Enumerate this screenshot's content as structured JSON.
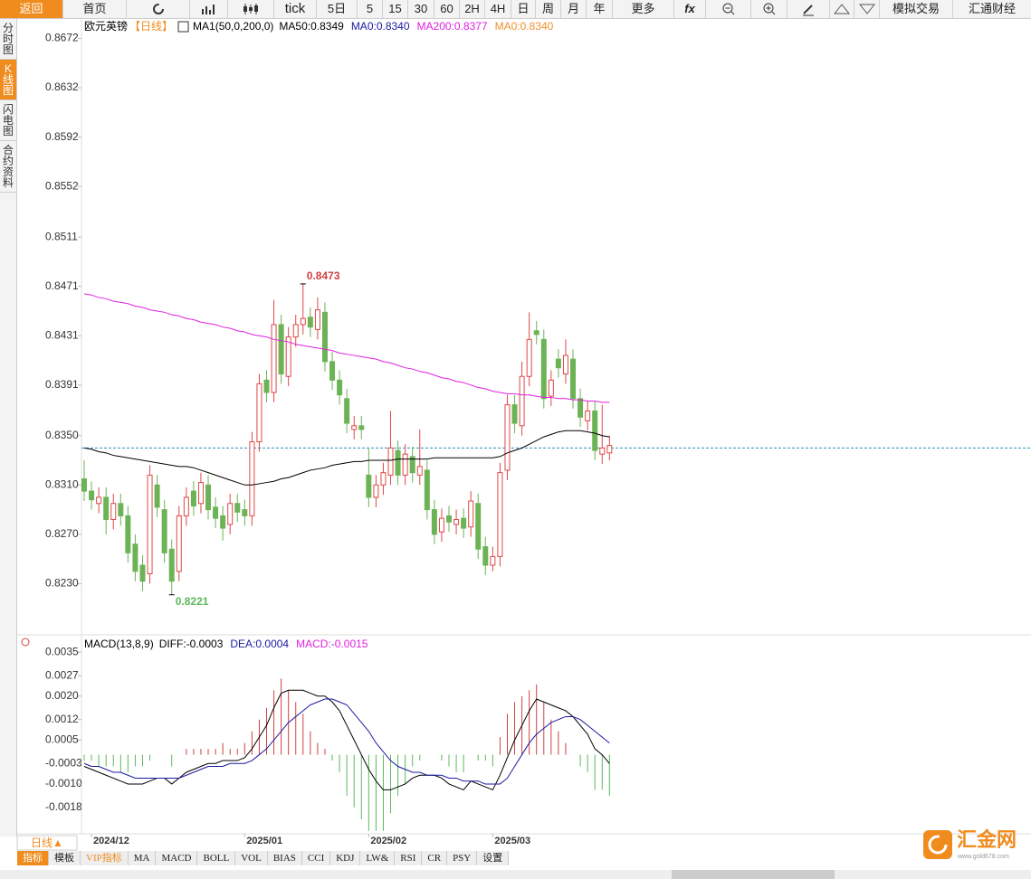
{
  "toolbar": [
    "返回",
    "首页",
    "tick",
    "5日",
    "5",
    "15",
    "30",
    "60",
    "2H",
    "4H",
    "日",
    "周",
    "月",
    "年",
    "更多",
    "fx",
    "模拟交易",
    "汇通财经"
  ],
  "sidebar": [
    "分时图",
    "K线图",
    "闪电图",
    "合约资料"
  ],
  "period_tab": "日线▲",
  "bottom_tabs": [
    "指标",
    "模板",
    "VIP指标",
    "MA",
    "MACD",
    "BOLL",
    "VOL",
    "BIAS",
    "CCI",
    "KDJ",
    "LW&",
    "RSI",
    "CR",
    "PSY",
    "设置"
  ],
  "logo": {
    "name": "汇金网",
    "url": "www.gold678.com"
  },
  "chart_data": {
    "type": "candlestick",
    "title": "欧元英镑",
    "subtitle": "【日线】",
    "indicator_label": "MA1(50,0,200,0)",
    "categories": [
      null,
      "2024/12",
      null,
      null,
      null,
      null,
      null,
      null,
      null,
      null,
      null,
      null,
      null,
      null,
      null,
      null,
      null,
      null,
      null,
      null,
      null,
      null,
      "2025/01",
      null,
      null,
      null,
      null,
      null,
      null,
      null,
      null,
      null,
      null,
      null,
      null,
      null,
      null,
      null,
      null,
      "2025/02",
      null,
      null,
      null,
      null,
      null,
      null,
      null,
      null,
      null,
      null,
      null,
      null,
      null,
      null,
      null,
      null,
      "2025/03",
      null,
      null,
      null,
      null,
      null,
      null,
      null,
      null,
      null,
      null,
      null,
      null,
      null,
      null,
      null,
      null
    ],
    "open": [
      0.8315,
      0.8305,
      0.8295,
      0.83,
      0.8282,
      0.8295,
      0.8285,
      0.8262,
      0.8245,
      0.8238,
      0.831,
      0.829,
      0.8258,
      0.824,
      0.8285,
      0.8305,
      0.8295,
      0.831,
      0.8292,
      0.8285,
      0.8278,
      0.8295,
      0.829,
      0.8285,
      0.8345,
      0.8395,
      0.8385,
      0.844,
      0.8398,
      0.843,
      0.844,
      0.8446,
      0.8436,
      0.845,
      0.841,
      0.8395,
      0.838,
      0.8355,
      0.8358,
      0.8318,
      0.83,
      0.831,
      0.8318,
      0.8338,
      0.8318,
      0.8333,
      0.8318,
      0.8322,
      0.829,
      0.8272,
      0.8285,
      0.8278,
      0.8283,
      0.8276,
      0.8295,
      0.826,
      0.8245,
      0.8252,
      0.8322,
      0.8375,
      0.8358,
      0.8398,
      0.8435,
      0.8428,
      0.8382,
      0.8412,
      0.84,
      0.8412,
      0.838,
      0.8362,
      0.837,
      0.8335,
      0.8336
    ],
    "high": [
      0.833,
      0.8313,
      0.8308,
      0.8308,
      0.8303,
      0.8303,
      0.8293,
      0.827,
      0.8253,
      0.8326,
      0.8318,
      0.8298,
      0.8266,
      0.8293,
      0.8308,
      0.8313,
      0.832,
      0.8318,
      0.83,
      0.8293,
      0.8303,
      0.8303,
      0.8298,
      0.8353,
      0.84,
      0.8403,
      0.846,
      0.8448,
      0.8438,
      0.8448,
      0.8473,
      0.8454,
      0.8462,
      0.8458,
      0.8418,
      0.8403,
      0.8388,
      0.8366,
      0.8366,
      0.834,
      0.8318,
      0.8328,
      0.837,
      0.8346,
      0.8343,
      0.8341,
      0.8355,
      0.833,
      0.8298,
      0.8291,
      0.8293,
      0.829,
      0.8291,
      0.8305,
      0.8303,
      0.8268,
      0.826,
      0.8328,
      0.8383,
      0.8383,
      0.841,
      0.845,
      0.8443,
      0.8436,
      0.8403,
      0.842,
      0.8428,
      0.842,
      0.8388,
      0.8378,
      0.8378,
      0.8375,
      0.835
    ],
    "low": [
      0.8297,
      0.829,
      0.8287,
      0.827,
      0.8274,
      0.8277,
      0.8247,
      0.8232,
      0.8224,
      0.823,
      0.8284,
      0.8247,
      0.8221,
      0.8232,
      0.8277,
      0.8285,
      0.8287,
      0.8282,
      0.8275,
      0.8265,
      0.827,
      0.828,
      0.8277,
      0.8277,
      0.8337,
      0.8377,
      0.8377,
      0.8392,
      0.839,
      0.8422,
      0.8432,
      0.843,
      0.8428,
      0.8402,
      0.8387,
      0.8375,
      0.8352,
      0.8347,
      0.8347,
      0.8292,
      0.8292,
      0.8302,
      0.831,
      0.831,
      0.831,
      0.8312,
      0.831,
      0.8282,
      0.8262,
      0.8264,
      0.8272,
      0.827,
      0.8267,
      0.8268,
      0.825,
      0.8237,
      0.824,
      0.8244,
      0.8314,
      0.8352,
      0.835,
      0.839,
      0.8424,
      0.8372,
      0.8374,
      0.8397,
      0.8392,
      0.8372,
      0.8357,
      0.8354,
      0.833,
      0.8327,
      0.833
    ],
    "close": [
      0.8305,
      0.8298,
      0.83,
      0.8282,
      0.8295,
      0.8285,
      0.8255,
      0.824,
      0.8232,
      0.8318,
      0.8292,
      0.8255,
      0.8232,
      0.8285,
      0.83,
      0.8293,
      0.8312,
      0.829,
      0.8283,
      0.8275,
      0.8295,
      0.8288,
      0.8285,
      0.8345,
      0.8392,
      0.8385,
      0.844,
      0.84,
      0.843,
      0.844,
      0.8445,
      0.8438,
      0.8452,
      0.841,
      0.8395,
      0.8383,
      0.836,
      0.8358,
      0.8355,
      0.83,
      0.831,
      0.832,
      0.834,
      0.8318,
      0.8335,
      0.832,
      0.8325,
      0.829,
      0.827,
      0.8283,
      0.828,
      0.8282,
      0.8275,
      0.8297,
      0.8258,
      0.8245,
      0.8252,
      0.832,
      0.8375,
      0.836,
      0.8398,
      0.8428,
      0.8432,
      0.838,
      0.8395,
      0.8405,
      0.8415,
      0.838,
      0.8365,
      0.837,
      0.8338,
      0.834,
      0.8342
    ],
    "up_color": "#e04848",
    "down_color": "#6cb356",
    "ylim": [
      0.819,
      0.8687
    ],
    "yticks": [
      0.8672,
      0.8632,
      0.8592,
      0.8552,
      0.8511,
      0.8471,
      0.8431,
      0.8391,
      {
        "value": 0.835,
        "label": "0.8350"
      },
      {
        "value": 0.831,
        "label": "0.8310"
      },
      {
        "value": 0.827,
        "label": "0.8270"
      },
      {
        "value": 0.823,
        "label": "0.8230"
      }
    ],
    "reference_line": 0.834,
    "reference_color": "#2a8fbd",
    "series": [
      {
        "name": "MA50:0.8349",
        "color": "#000000",
        "values": [
          0.834,
          0.8339,
          0.8337,
          0.8336,
          0.8334,
          0.8333,
          0.8332,
          0.8331,
          0.833,
          0.8329,
          0.8328,
          0.8327,
          0.8326,
          0.8325,
          0.8325,
          0.8324,
          0.8322,
          0.832,
          0.8318,
          0.8316,
          0.8314,
          0.8312,
          0.831,
          0.831,
          0.8311,
          0.8312,
          0.8313,
          0.8315,
          0.8316,
          0.8318,
          0.832,
          0.8322,
          0.8323,
          0.8324,
          0.8326,
          0.8327,
          0.8328,
          0.8329,
          0.8329,
          0.833,
          0.833,
          0.833,
          0.833,
          0.8331,
          0.8331,
          0.8331,
          0.8331,
          0.8331,
          0.8332,
          0.8332,
          0.8332,
          0.8332,
          0.8332,
          0.8332,
          0.8332,
          0.8332,
          0.8332,
          0.8333,
          0.8336,
          0.8338,
          0.834,
          0.8343,
          0.8346,
          0.8349,
          0.8351,
          0.8353,
          0.8354,
          0.8354,
          0.8354,
          0.8353,
          0.8352,
          0.835,
          0.8349
        ]
      },
      {
        "name": "MA200:0.8377",
        "color": "#e020e0",
        "values": [
          0.8465,
          0.8464,
          0.8462,
          0.8461,
          0.8459,
          0.8458,
          0.8457,
          0.8455,
          0.8454,
          0.8452,
          0.8451,
          0.845,
          0.8448,
          0.8447,
          0.8445,
          0.8444,
          0.8442,
          0.8441,
          0.844,
          0.8438,
          0.8437,
          0.8435,
          0.8434,
          0.8432,
          0.8431,
          0.843,
          0.8428,
          0.8427,
          0.8426,
          0.8424,
          0.8423,
          0.8422,
          0.8421,
          0.842,
          0.8419,
          0.8417,
          0.8416,
          0.8415,
          0.8414,
          0.8413,
          0.8412,
          0.841,
          0.8409,
          0.8407,
          0.8405,
          0.8404,
          0.8402,
          0.8401,
          0.8399,
          0.8397,
          0.8396,
          0.8394,
          0.8393,
          0.8391,
          0.8389,
          0.8388,
          0.8386,
          0.8385,
          0.8384,
          0.8384,
          0.8383,
          0.8383,
          0.8382,
          0.8381,
          0.8381,
          0.838,
          0.838,
          0.8379,
          0.8379,
          0.8378,
          0.8378,
          0.8377,
          0.8377
        ]
      }
    ],
    "legend": [
      {
        "text": "MA50:0.8349",
        "color": "#000000"
      },
      {
        "text": "MA0:0.8340",
        "color": "#1a1aa0"
      },
      {
        "text": "MA200:0.8377",
        "color": "#e020e0"
      },
      {
        "text": "MA0:0.8340",
        "color": "#f09030"
      }
    ],
    "macd": {
      "title": "MACD(13,8,9)",
      "ylim": [
        -0.0027,
        0.004
      ],
      "yticks": [
        0.0035,
        0.0027,
        {
          "value": 0.002,
          "label": "0.0020"
        },
        0.0012,
        0.0005,
        -0.0003,
        {
          "value": -0.001,
          "label": "-0.0010"
        },
        -0.0018
      ],
      "series": [
        {
          "name": "DIFF:-0.0003",
          "color": "#000000",
          "values": [
            -0.0004,
            -0.0005,
            -0.0006,
            -0.0007,
            -0.0008,
            -0.0009,
            -0.001,
            -0.001,
            -0.001,
            -0.0009,
            -0.0008,
            -0.0008,
            -0.001,
            -0.0008,
            -0.0006,
            -0.0005,
            -0.0004,
            -0.0003,
            -0.0003,
            -0.0002,
            -0.0002,
            -0.0002,
            -0.0001,
            0.0002,
            0.0006,
            0.001,
            0.0016,
            0.0021,
            0.0022,
            0.0022,
            0.0022,
            0.0021,
            0.002,
            0.002,
            0.0018,
            0.0015,
            0.001,
            0.0005,
            0.0,
            -0.0005,
            -0.0009,
            -0.0012,
            -0.0012,
            -0.0011,
            -0.001,
            -0.0008,
            -0.0007,
            -0.0007,
            -0.0007,
            -0.0008,
            -0.001,
            -0.0011,
            -0.0012,
            -0.0009,
            -0.001,
            -0.0011,
            -0.0012,
            -0.0007,
            -0.0001,
            0.0005,
            0.001,
            0.0015,
            0.0019,
            0.0018,
            0.0017,
            0.0016,
            0.0015,
            0.0013,
            0.001,
            0.0007,
            0.0002,
            0.0,
            -0.0003
          ]
        },
        {
          "name": "DEA:0.0004",
          "color": "#1a1aa0",
          "values": [
            -0.0003,
            -0.0004,
            -0.0004,
            -0.0005,
            -0.0006,
            -0.0006,
            -0.0007,
            -0.0008,
            -0.0008,
            -0.0008,
            -0.0008,
            -0.0008,
            -0.0008,
            -0.0008,
            -0.0007,
            -0.0006,
            -0.0005,
            -0.0004,
            -0.0004,
            -0.0004,
            -0.0003,
            -0.0003,
            -0.0003,
            -0.0002,
            0.0,
            0.0002,
            0.0005,
            0.0008,
            0.0011,
            0.0013,
            0.0015,
            0.0017,
            0.0018,
            0.0019,
            0.0019,
            0.0018,
            0.0017,
            0.0014,
            0.0011,
            0.0008,
            0.0004,
            0.0001,
            -0.0002,
            -0.0004,
            -0.0005,
            -0.0006,
            -0.0006,
            -0.0007,
            -0.0007,
            -0.0007,
            -0.0008,
            -0.0008,
            -0.0009,
            -0.0009,
            -0.0009,
            -0.001,
            -0.001,
            -0.001,
            -0.0008,
            -0.0004,
            0.0,
            0.0004,
            0.0007,
            0.0009,
            0.0011,
            0.0012,
            0.0013,
            0.0013,
            0.0012,
            0.001,
            0.0008,
            0.0006,
            0.0004
          ]
        }
      ],
      "histogram": {
        "name": "MACD:-0.0015",
        "color": "#e020e0",
        "up_color": "#d04040",
        "down_color": "#5cb85c",
        "values": [
          -0.0002,
          -0.0002,
          -0.0004,
          -0.0004,
          -0.0004,
          -0.0006,
          -0.0006,
          -0.0004,
          -0.0004,
          -0.0002,
          0.0,
          0.0,
          -0.0004,
          0.0,
          0.0002,
          0.0002,
          0.0002,
          0.0002,
          0.0002,
          0.0004,
          0.0002,
          0.0002,
          0.0004,
          0.0008,
          0.0012,
          0.0016,
          0.0022,
          0.0026,
          0.0022,
          0.0018,
          0.0014,
          0.0008,
          0.0004,
          0.0002,
          -0.0002,
          -0.0006,
          -0.0014,
          -0.0018,
          -0.0022,
          -0.0026,
          -0.0026,
          -0.0026,
          -0.002,
          -0.0014,
          -0.001,
          -0.0004,
          -0.0002,
          0.0,
          0.0,
          -0.0002,
          -0.0004,
          -0.0006,
          -0.0006,
          0.0,
          -0.0002,
          -0.0002,
          -0.0004,
          0.0006,
          0.0014,
          0.0018,
          0.002,
          0.0022,
          0.0024,
          0.0018,
          0.0012,
          0.0008,
          0.0004,
          0.0,
          -0.0004,
          -0.0006,
          -0.0012,
          -0.0012,
          -0.0014
        ]
      }
    }
  }
}
